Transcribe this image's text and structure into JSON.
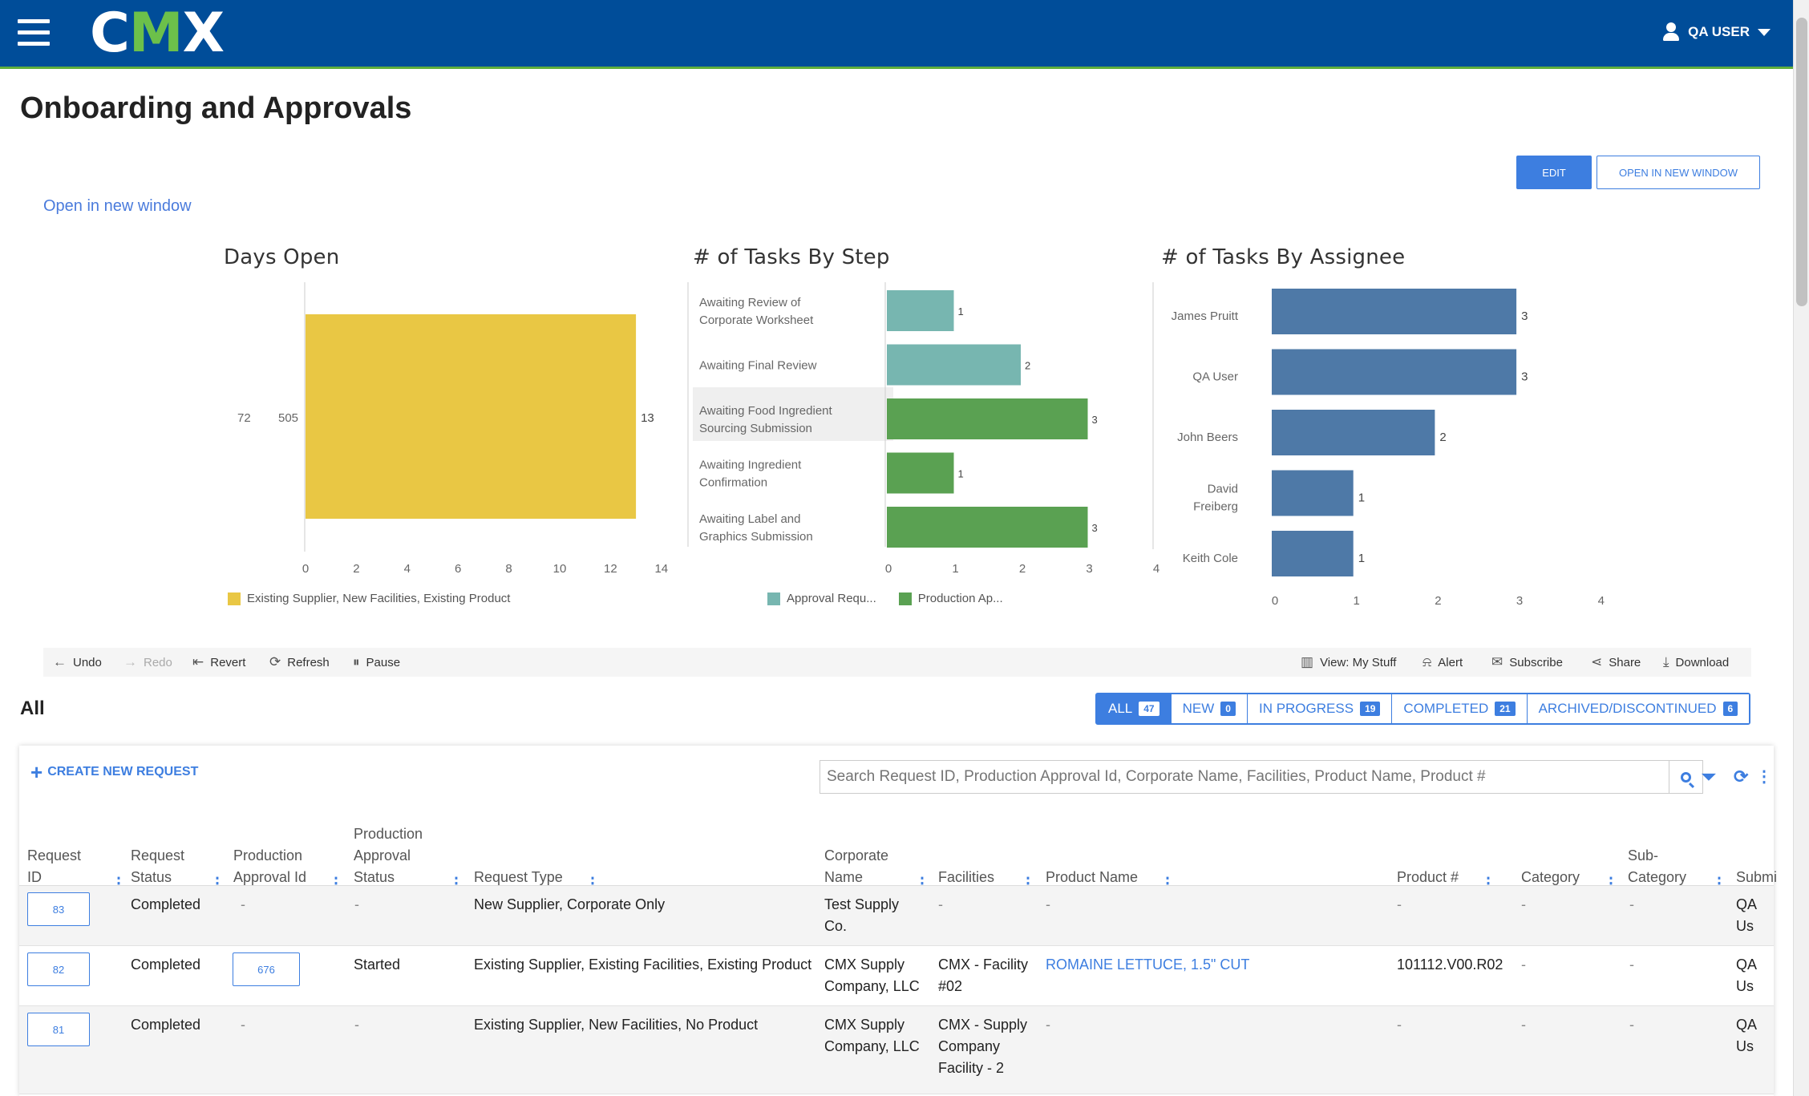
{
  "header": {
    "logo_left": "C",
    "logo_m": "M",
    "logo_right": "X",
    "user": "QA USER"
  },
  "page": {
    "title": "Onboarding and Approvals",
    "edit_label": "EDIT",
    "open_new_label": "OPEN IN NEW WINDOW",
    "open_link": "Open in new window"
  },
  "chart_data": [
    {
      "type": "bar",
      "title": "Days Open",
      "orientation": "horizontal",
      "row_labels": [
        "72",
        "505"
      ],
      "categories": [
        "Existing Supplier, New Facilities, Existing Product"
      ],
      "values": [
        13
      ],
      "xlim": [
        0,
        14
      ],
      "xticks": [
        "0",
        "2",
        "4",
        "6",
        "8",
        "10",
        "12",
        "14"
      ],
      "legend": [
        "Existing Supplier, New Facilities, Existing Product"
      ],
      "legend_position": "bottom",
      "colors": [
        "#e9c744"
      ]
    },
    {
      "type": "bar",
      "title": "# of Tasks By Step",
      "orientation": "horizontal",
      "categories": [
        "Awaiting Review of Corporate Worksheet",
        "Awaiting Final Review",
        "Awaiting Food Ingredient Sourcing Submission",
        "Awaiting Ingredient Confirmation",
        "Awaiting Label and Graphics Submission"
      ],
      "values": [
        1,
        2,
        3,
        1,
        3
      ],
      "groups": [
        "Approval Requ...",
        "Approval Requ...",
        "Production Ap...",
        "Production Ap...",
        "Production Ap..."
      ],
      "xlim": [
        0,
        4
      ],
      "xticks": [
        "0",
        "1",
        "2",
        "3",
        "4"
      ],
      "legend": [
        {
          "name": "Approval Requ...",
          "color": "#77b6b0"
        },
        {
          "name": "Production Ap...",
          "color": "#5aa152"
        }
      ],
      "legend_position": "bottom"
    },
    {
      "type": "bar",
      "title": "# of Tasks By Assignee",
      "orientation": "horizontal",
      "categories": [
        "James Pruitt",
        "QA User",
        "John Beers",
        "David Freiberg",
        "Keith Cole"
      ],
      "values": [
        3,
        3,
        2,
        1,
        1
      ],
      "xlim": [
        0,
        4
      ],
      "xticks": [
        "0",
        "1",
        "2",
        "3",
        "4"
      ],
      "colors": [
        "#4e79a7"
      ]
    }
  ],
  "toolbar": {
    "undo": "Undo",
    "redo": "Redo",
    "revert": "Revert",
    "refresh": "Refresh",
    "pause": "Pause",
    "view": "View: My Stuff",
    "alert": "Alert",
    "subscribe": "Subscribe",
    "share": "Share",
    "download": "Download"
  },
  "list": {
    "section_title": "All",
    "tabs": [
      {
        "label": "ALL",
        "count": "47"
      },
      {
        "label": "NEW",
        "count": "0"
      },
      {
        "label": "IN PROGRESS",
        "count": "19"
      },
      {
        "label": "COMPLETED",
        "count": "21"
      },
      {
        "label": "ARCHIVED/DISCONTINUED",
        "count": "6"
      }
    ],
    "create_label": "CREATE NEW REQUEST",
    "search_placeholder": "Search Request ID, Production Approval Id, Corporate Name, Facilities, Product Name, Product #",
    "columns": [
      "Request ID",
      "Request Status",
      "Production Approval Id",
      "Production Approval Status",
      "Request Type",
      "Corporate Name",
      "Facilities",
      "Product Name",
      "Product #",
      "Category",
      "Sub-Category",
      "Submi"
    ],
    "rows": [
      {
        "request_id": "83",
        "status": "Completed",
        "pa_id": "-",
        "pa_status": "-",
        "type": "New Supplier, Corporate Only",
        "corporate": "Test Supply Co.",
        "facilities": "-",
        "product": "-",
        "product_no": "-",
        "category": "-",
        "subcategory": "-",
        "submitter": "QA Us"
      },
      {
        "request_id": "82",
        "status": "Completed",
        "pa_id": "676",
        "pa_status": "Started",
        "type": "Existing Supplier, Existing Facilities, Existing Product",
        "corporate": "CMX Supply Company, LLC",
        "facilities": "CMX - Facility #02",
        "product": "ROMAINE LETTUCE, 1.5\" CUT",
        "product_no": "101112.V00.R02",
        "category": "-",
        "subcategory": "-",
        "submitter": "QA Us"
      },
      {
        "request_id": "81",
        "status": "Completed",
        "pa_id": "-",
        "pa_status": "-",
        "type": "Existing Supplier, New Facilities, No Product",
        "corporate": "CMX Supply Company, LLC",
        "facilities": "CMX - Supply Company Facility - 2",
        "product": "-",
        "product_no": "-",
        "category": "-",
        "subcategory": "-",
        "submitter": "QA Us"
      }
    ]
  }
}
